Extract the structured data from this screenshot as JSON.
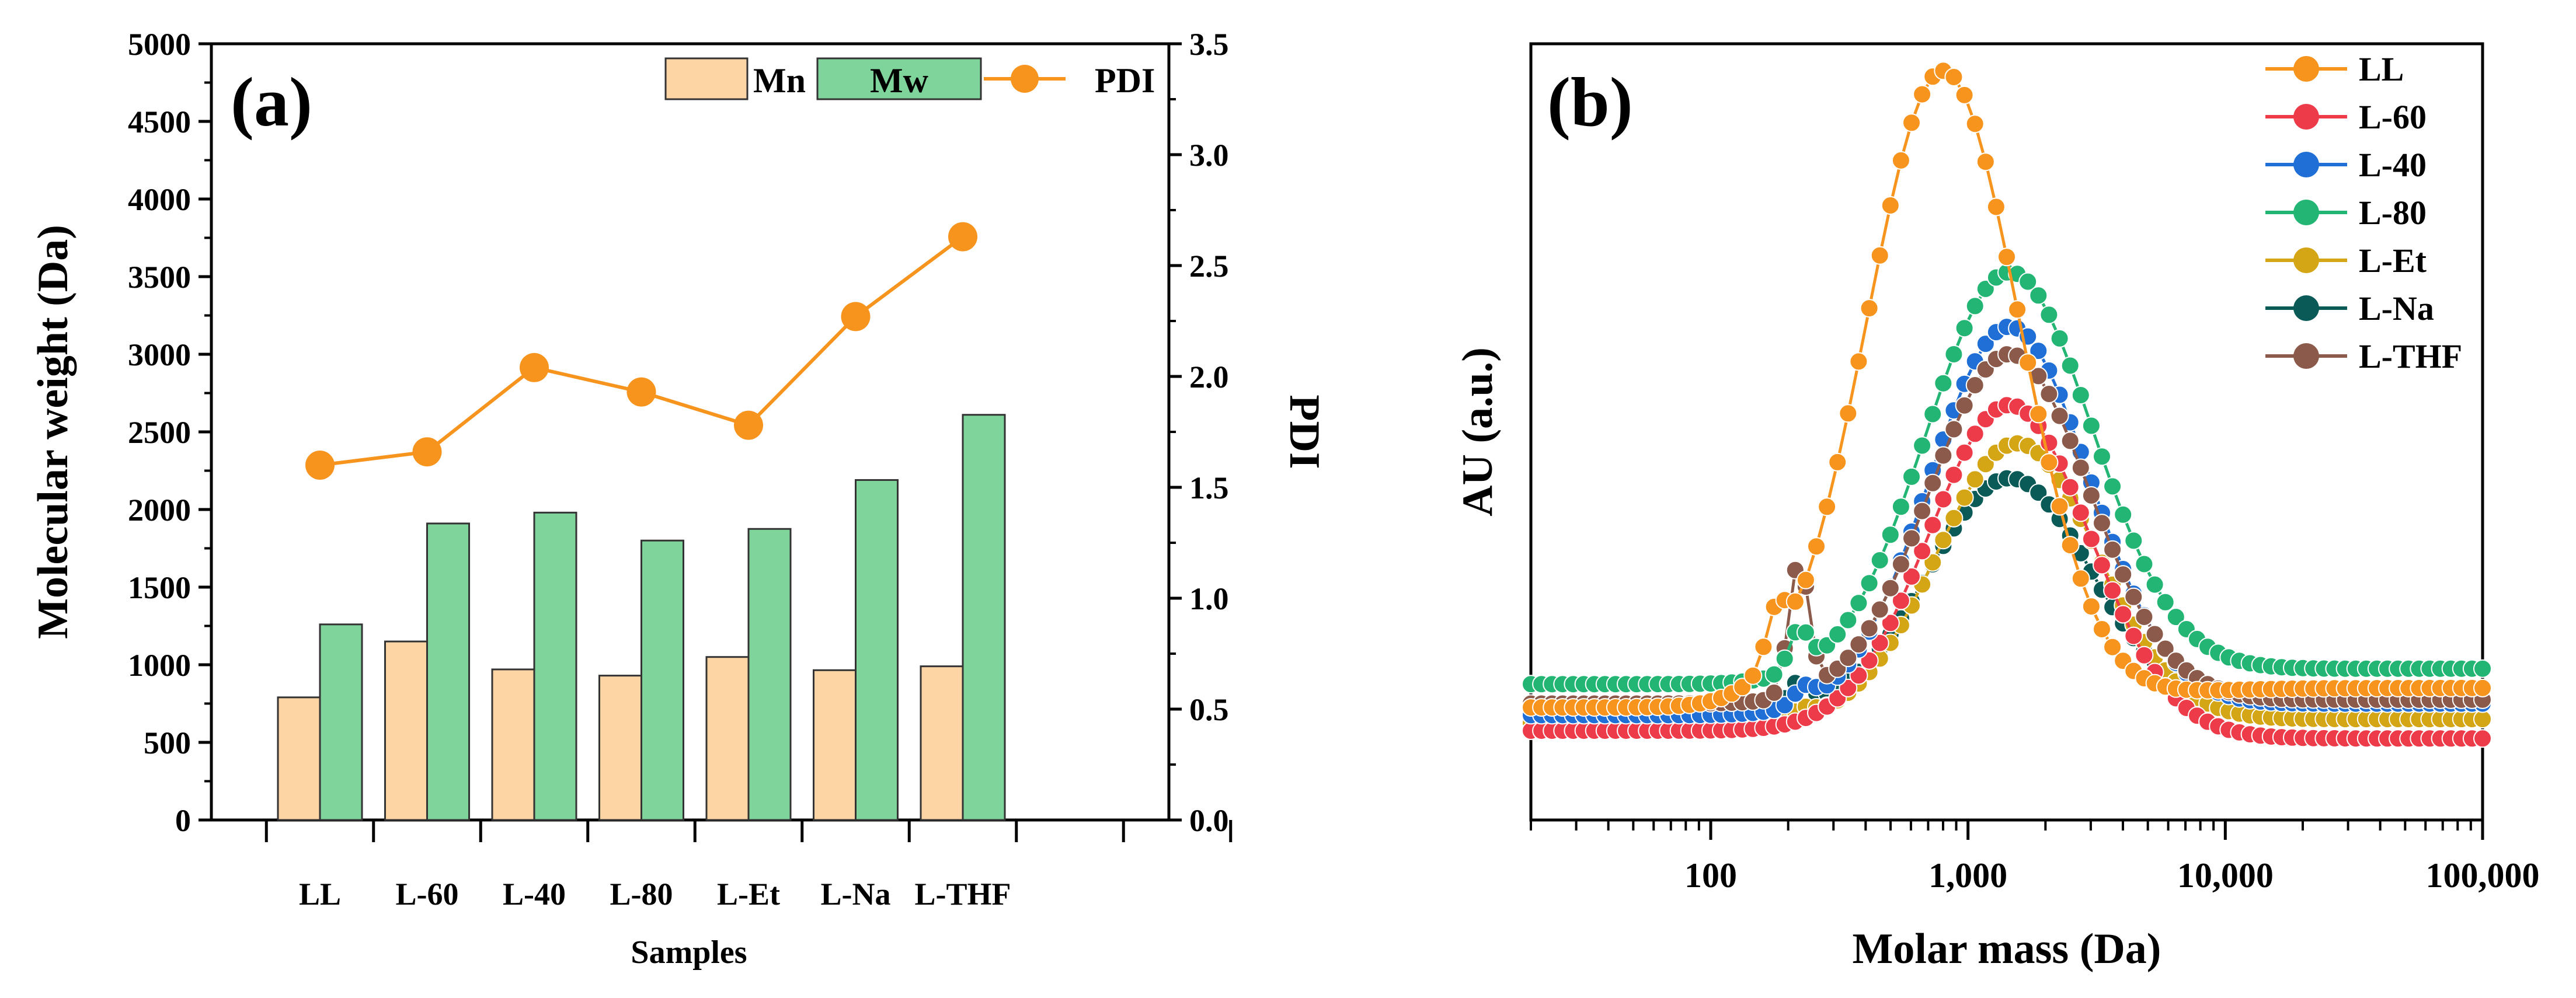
{
  "chart_data": [
    {
      "panel_label": "(a)",
      "type": "bar",
      "xlabel": "Samples",
      "ylabel": "Molecular  weight (Da)",
      "y2label": "PDI",
      "ylim": [
        0,
        5000
      ],
      "y2lim": [
        0,
        3.5
      ],
      "yticks": [
        "0",
        "500",
        "1000",
        "1500",
        "2000",
        "2500",
        "3000",
        "3500",
        "4000",
        "4500",
        "5000"
      ],
      "y2ticks": [
        "0.0",
        "0.5",
        "1.0",
        "1.5",
        "2.0",
        "2.5",
        "3.0",
        "3.5"
      ],
      "categories": [
        "LL",
        "L-60",
        "L-40",
        "L-80",
        "L-Et",
        "L-Na",
        "L-THF"
      ],
      "series": [
        {
          "name": "Mn",
          "kind": "bar",
          "color": "#fdd4a3",
          "values": [
            790,
            1150,
            970,
            930,
            1050,
            965,
            990
          ]
        },
        {
          "name": "Mw",
          "kind": "bar",
          "color": "#7fd49b",
          "values": [
            1260,
            1910,
            1980,
            1800,
            1875,
            2190,
            2610
          ]
        },
        {
          "name": "PDI",
          "kind": "line",
          "axis": "right",
          "color": "#f7941d",
          "values": [
            1.6,
            1.66,
            2.04,
            1.93,
            1.78,
            2.27,
            2.63
          ]
        }
      ],
      "legend_position": "top-right"
    },
    {
      "panel_label": "(b)",
      "type": "line",
      "xscale": "log",
      "xlabel": "Molar mass (Da)",
      "ylabel": "AU (a.u.)",
      "xlim": [
        20,
        100000
      ],
      "xticks": [
        100,
        1000,
        10000,
        100000
      ],
      "xtick_labels": [
        "100",
        "1,000",
        "10,000",
        "100,000"
      ],
      "ylim": [
        0,
        1
      ],
      "legend_position": "top-right",
      "series": [
        {
          "name": "LL",
          "color": "#f7941d",
          "base": 0.145,
          "peak_x": 800,
          "peak_h": 0.82,
          "width": 0.42,
          "tail": 0.025,
          "bump_x": 180,
          "bump_h": 0.06
        },
        {
          "name": "L-60",
          "color": "#ee3b4a",
          "base": 0.115,
          "peak_x": 1450,
          "peak_h": 0.42,
          "width": 0.44,
          "tail": -0.01,
          "bump_x": 230,
          "bump_h": 0.0
        },
        {
          "name": "L-40",
          "color": "#1f6fd6",
          "base": 0.135,
          "peak_x": 1450,
          "peak_h": 0.5,
          "width": 0.44,
          "tail": 0.015,
          "bump_x": 230,
          "bump_h": 0.02
        },
        {
          "name": "L-80",
          "color": "#22b573",
          "base": 0.175,
          "peak_x": 1450,
          "peak_h": 0.53,
          "width": 0.46,
          "tail": 0.02,
          "bump_x": 220,
          "bump_h": 0.05
        },
        {
          "name": "L-Et",
          "color": "#d4a514",
          "base": 0.125,
          "peak_x": 1550,
          "peak_h": 0.36,
          "width": 0.44,
          "tail": 0.005,
          "bump_x": 230,
          "bump_h": 0.01
        },
        {
          "name": "L-Na",
          "color": "#0a5a57",
          "base": 0.14,
          "peak_x": 1450,
          "peak_h": 0.3,
          "width": 0.44,
          "tail": 0.01,
          "bump_x": 220,
          "bump_h": 0.03
        },
        {
          "name": "L-THF",
          "color": "#8b5a4a",
          "base": 0.15,
          "peak_x": 1450,
          "peak_h": 0.45,
          "width": 0.44,
          "tail": 0.005,
          "bump_x": 220,
          "bump_h": 0.17
        }
      ]
    }
  ]
}
